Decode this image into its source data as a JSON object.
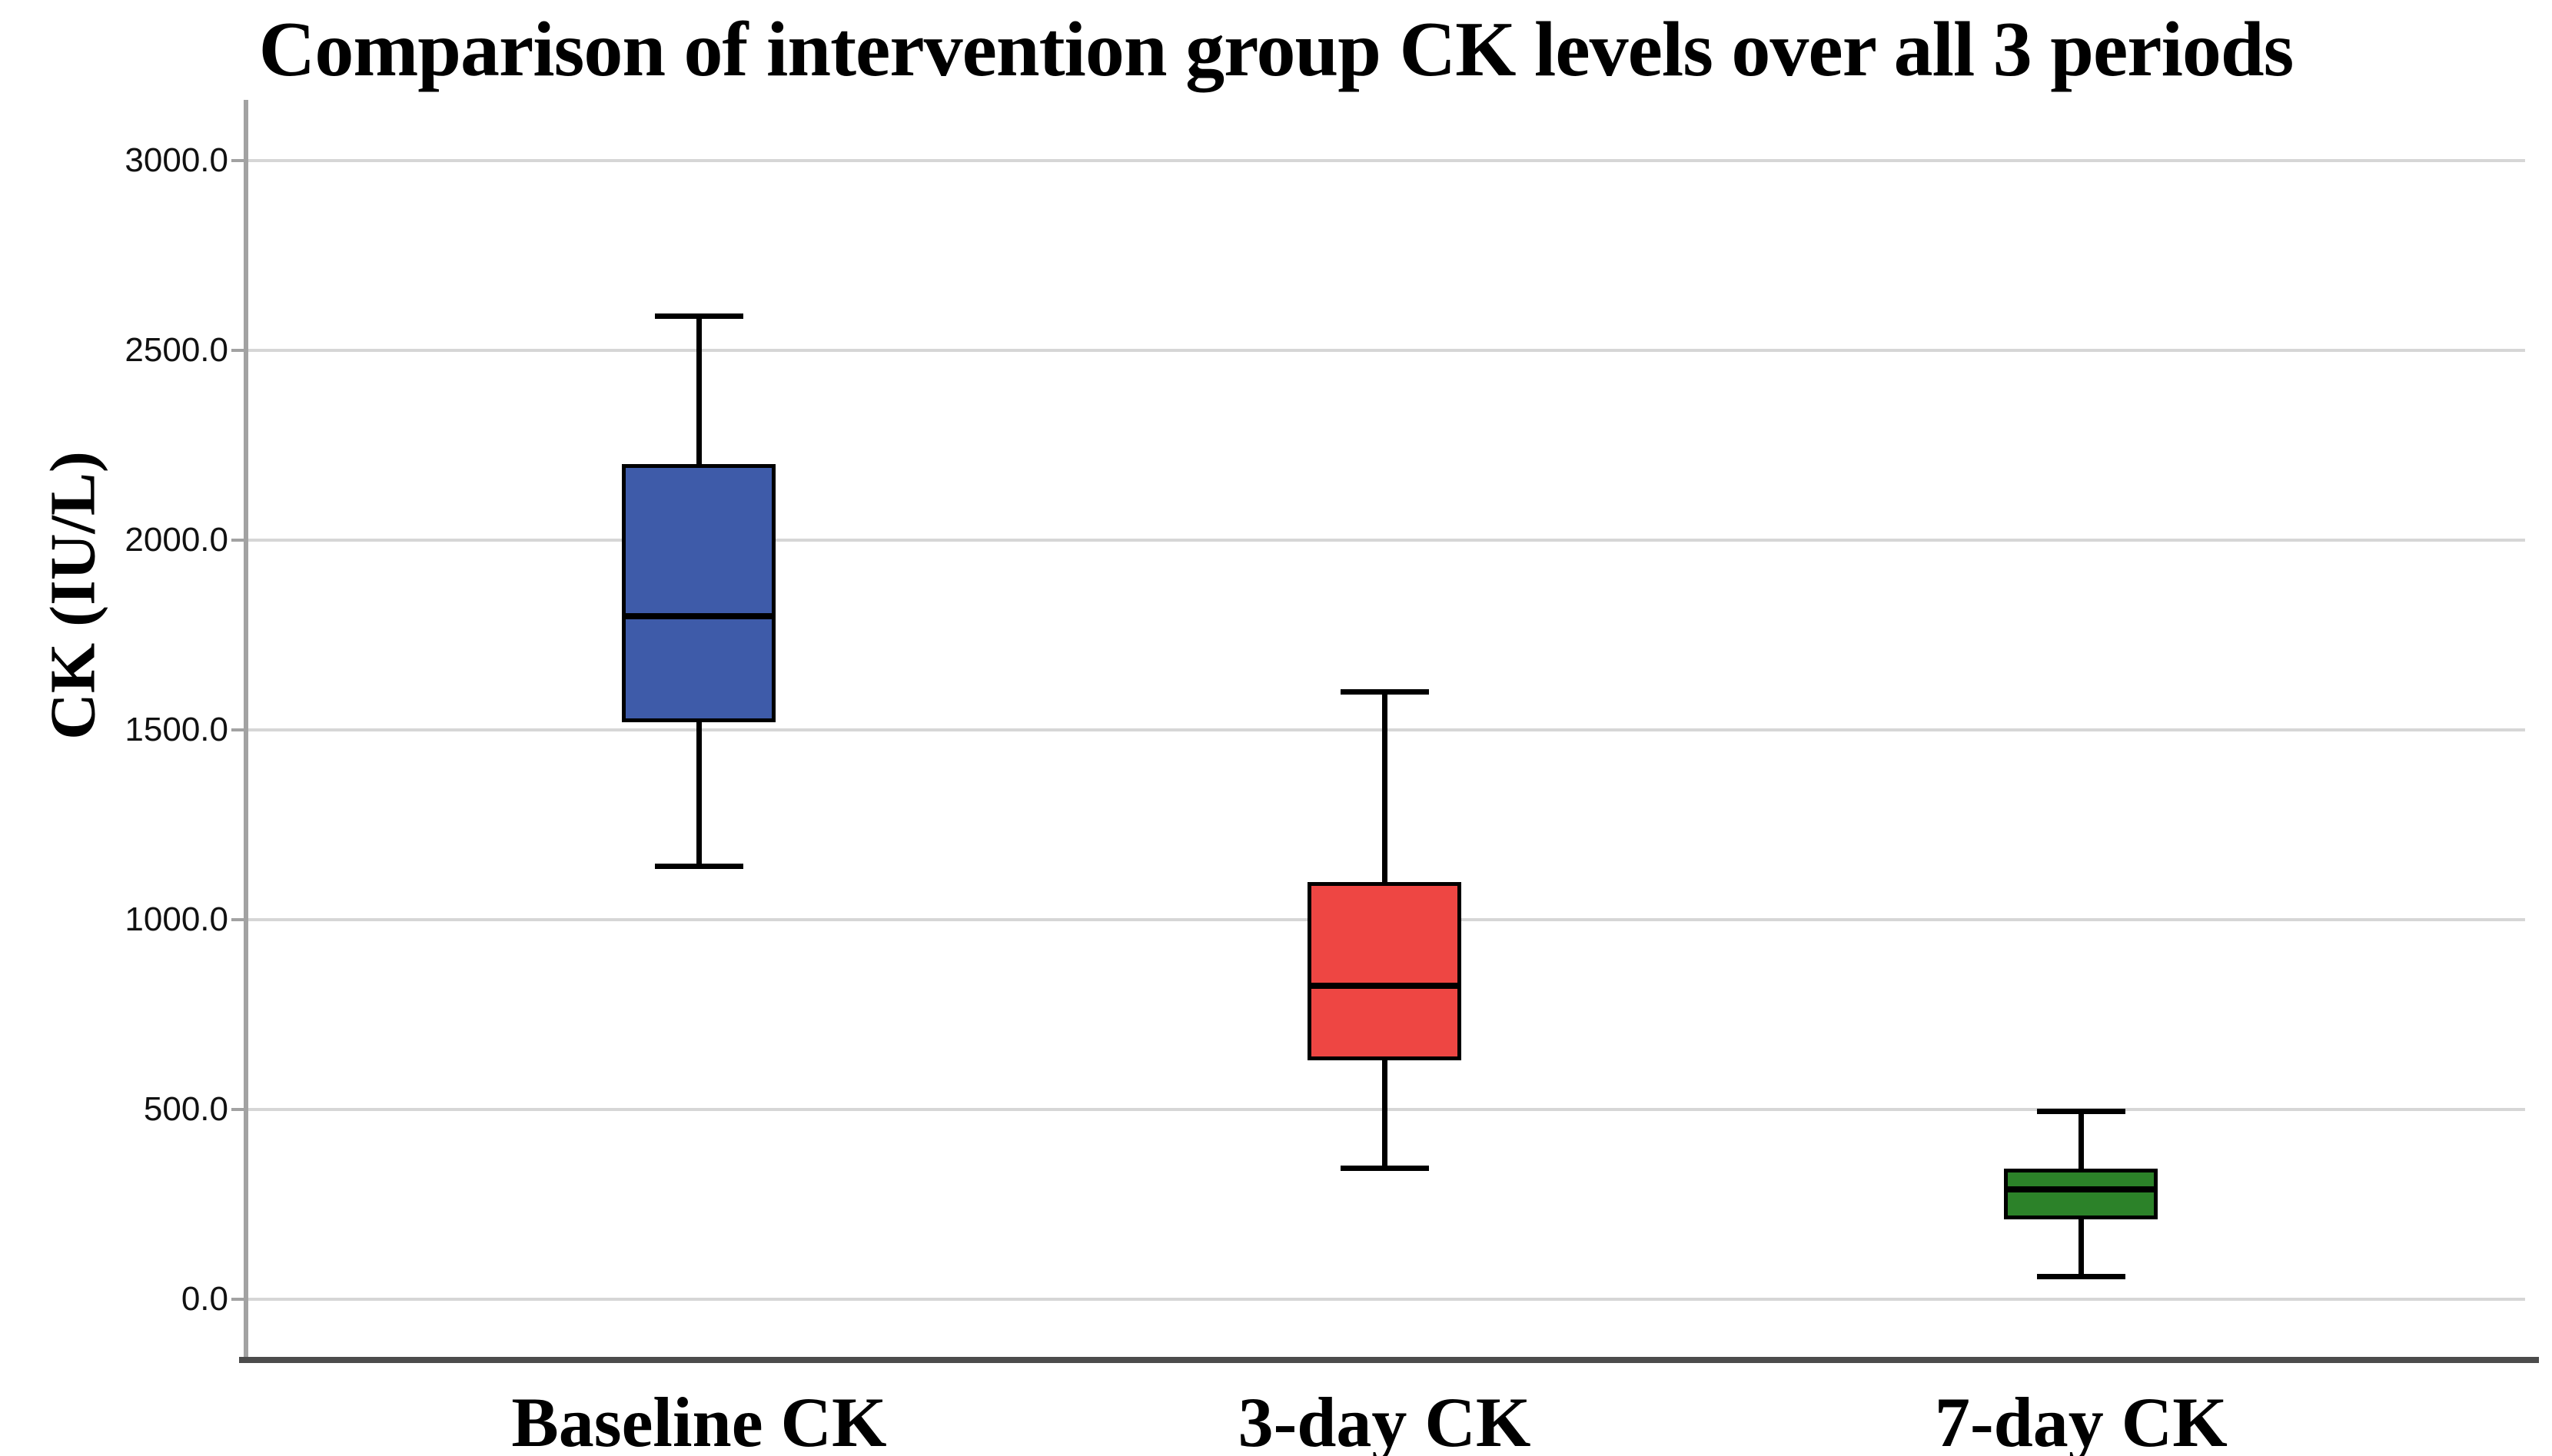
{
  "figure": {
    "title": "Comparison of intervention group CK levels over all 3 periods",
    "y_axis_label": "CK (IU/L)",
    "background_color": "#ffffff",
    "gridline_color": "#d6d6d6",
    "y_axis_line_color": "#a2a2a2",
    "x_axis_line_color": "#4c4c4c"
  },
  "chart_data": {
    "type": "box",
    "title": "Comparison of intervention group CK levels over all 3 periods",
    "xlabel": "",
    "ylabel": "CK (IU/L)",
    "categories": [
      "Baseline CK",
      "3-day CK",
      "7-day CK"
    ],
    "series": [
      {
        "name": "Baseline CK",
        "color": "#3E5BA9",
        "whisker_low": 1140,
        "q1": 1520,
        "median": 1800,
        "q3": 2200,
        "whisker_high": 2590
      },
      {
        "name": "3-day CK",
        "color": "#EE4643",
        "whisker_low": 345,
        "q1": 630,
        "median": 825,
        "q3": 1100,
        "whisker_high": 1600
      },
      {
        "name": "7-day CK",
        "color": "#2C8229",
        "whisker_low": 60,
        "q1": 210,
        "median": 290,
        "q3": 345,
        "whisker_high": 495
      }
    ],
    "ylim": [
      -160,
      3160
    ],
    "yticks": [
      3000,
      2500,
      2000,
      1500,
      1000,
      500,
      0
    ],
    "ytick_labels": [
      "3000.0",
      "2500.0",
      "2000.0",
      "1500.0",
      "1000.0",
      "500.0",
      "0.0"
    ],
    "category_positions_pct": [
      19.8,
      49.9,
      80.5
    ],
    "grid": "horizontal",
    "legend": "none",
    "box_outline_color": "#000000",
    "median_color": "#000000",
    "whisker_color": "#000000"
  }
}
